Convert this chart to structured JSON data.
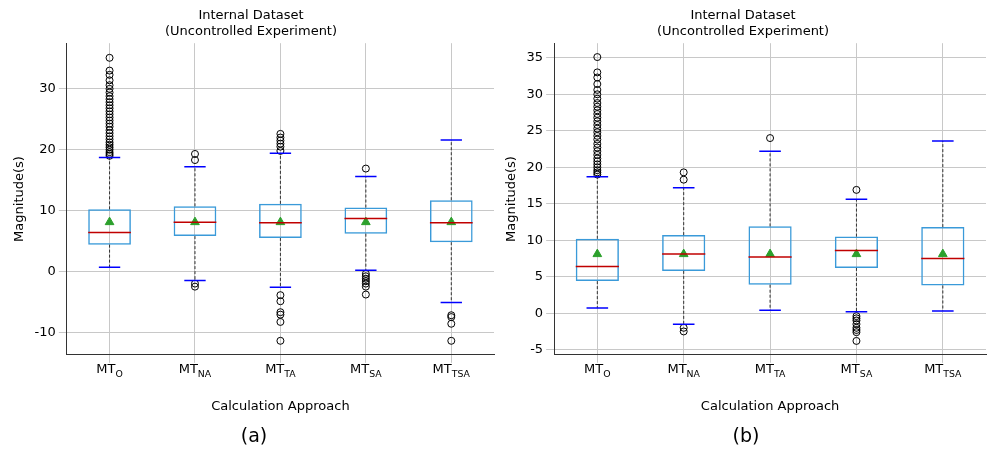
{
  "chart_data": [
    {
      "type": "box",
      "title": "Internal Dataset",
      "subtitle": "(Uncontrolled Experiment)",
      "xlabel": "Calculation Approach",
      "ylabel": "Magnitude(s)",
      "categories": [
        "MT$_{O}$",
        "MT$_{NA}$",
        "MT$_{TA}$",
        "MT$_{SA}$",
        "MT$_{TSA}$"
      ],
      "color": "#3a9ad9",
      "ylim": [
        -13.7,
        37.5
      ],
      "yticks": [
        -10,
        0,
        10,
        20,
        30
      ],
      "grid": true,
      "legend": false,
      "annotations": [
        "(a)"
      ],
      "boxes": [
        {
          "low": 0.7,
          "q1": 4.4,
          "median": 6.4,
          "q3": 10.2,
          "high": 18.7,
          "mean": 8.1,
          "outliers": [
            19.0,
            19.3,
            19.6,
            20.0,
            20.4,
            20.8,
            21.2,
            21.7,
            22.2,
            22.7,
            23.2,
            23.8,
            24.3,
            24.8,
            25.3,
            25.8,
            26.3,
            26.8,
            27.3,
            27.8,
            28.3,
            28.8,
            29.4,
            30.0,
            30.6,
            31.4,
            32.3,
            33.0,
            35.1
          ]
        },
        {
          "low": -1.5,
          "q1": 5.8,
          "median": 8.1,
          "q3": 10.7,
          "high": 17.2,
          "mean": 8.1,
          "outliers": [
            18.3,
            19.3,
            -2.0,
            -2.5
          ]
        },
        {
          "low": -2.6,
          "q1": 5.5,
          "median": 8.0,
          "q3": 11.1,
          "high": 19.4,
          "mean": 8.1,
          "outliers": [
            19.8,
            20.5,
            21.0,
            21.5,
            22.0,
            22.6,
            -3.9,
            -4.9,
            -6.7,
            -7.1,
            -8.3,
            -11.4
          ]
        },
        {
          "low": 0.2,
          "q1": 6.2,
          "median": 8.7,
          "q3": 10.5,
          "high": 15.6,
          "mean": 8.1,
          "outliers": [
            16.9,
            -0.4,
            -0.8,
            -1.2,
            -1.6,
            -2.0,
            -2.5,
            -3.8
          ]
        },
        {
          "low": -5.1,
          "q1": 4.8,
          "median": 8.0,
          "q3": 11.7,
          "high": 21.6,
          "mean": 8.1,
          "outliers": [
            -7.2,
            -7.5,
            -8.6,
            -11.4
          ]
        }
      ]
    },
    {
      "type": "box",
      "title": "Internal Dataset",
      "subtitle": "(Uncontrolled Experiment)",
      "xlabel": "Calculation Approach",
      "ylabel": "Magnitude(s)",
      "categories": [
        "MT$_{O}$",
        "MT$_{NA}$",
        "MT$_{TA}$",
        "MT$_{SA}$",
        "MT$_{TSA}$"
      ],
      "color": "#3a9ad9",
      "ylim": [
        -5.7,
        37
      ],
      "yticks": [
        -5,
        0,
        5,
        10,
        15,
        20,
        25,
        30,
        35
      ],
      "grid": true,
      "legend": false,
      "annotations": [
        "(b)"
      ],
      "boxes": [
        {
          "low": 0.7,
          "q1": 4.4,
          "median": 6.4,
          "q3": 10.2,
          "high": 18.7,
          "mean": 8.1,
          "outliers": [
            19.0,
            19.3,
            19.6,
            20.0,
            20.4,
            20.8,
            21.2,
            21.7,
            22.2,
            22.7,
            23.2,
            23.8,
            24.3,
            24.8,
            25.3,
            25.8,
            26.3,
            26.8,
            27.3,
            27.8,
            28.3,
            28.8,
            29.4,
            30.0,
            30.6,
            31.4,
            32.3,
            33.0,
            35.1
          ]
        },
        {
          "low": -1.5,
          "q1": 5.8,
          "median": 8.1,
          "q3": 10.7,
          "high": 17.2,
          "mean": 8.1,
          "outliers": [
            18.3,
            19.3,
            -2.0,
            -2.5
          ]
        },
        {
          "low": 0.4,
          "q1": 3.9,
          "median": 7.7,
          "q3": 11.9,
          "high": 22.2,
          "mean": 8.1,
          "outliers": [
            24.0
          ]
        },
        {
          "low": 0.2,
          "q1": 6.2,
          "median": 8.6,
          "q3": 10.5,
          "high": 15.6,
          "mean": 8.1,
          "outliers": [
            16.9,
            -0.4,
            -0.7,
            -1.0,
            -1.5,
            -2.0,
            -2.3,
            -2.6,
            -3.8
          ]
        },
        {
          "low": 0.3,
          "q1": 3.8,
          "median": 7.5,
          "q3": 11.8,
          "high": 23.6,
          "mean": 8.1
        }
      ]
    }
  ]
}
